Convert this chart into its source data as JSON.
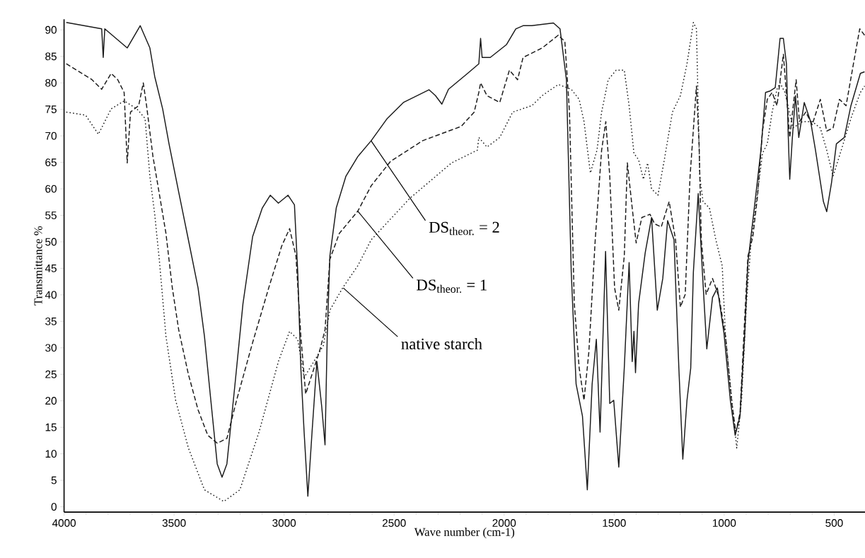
{
  "chart_data": {
    "type": "line",
    "xlabel": "Wave number (cm-1)",
    "ylabel": "Transmittance %",
    "xlim": [
      4000,
      360
    ],
    "ylim": [
      -1,
      92
    ],
    "xticks": [
      4000,
      3500,
      3000,
      2500,
      2000,
      1500,
      1000,
      500
    ],
    "yticks": [
      0,
      5,
      10,
      15,
      20,
      25,
      30,
      35,
      40,
      45,
      50,
      55,
      60,
      65,
      70,
      75,
      80,
      85,
      90
    ],
    "grid": false,
    "marker": "none",
    "series": [
      {
        "color": "#1a1a1a",
        "line_style": "solid",
        "x": [
          3990,
          3829,
          3822,
          3815,
          3713,
          3654,
          3610,
          3588,
          3552,
          3523,
          3479,
          3435,
          3391,
          3362,
          3333,
          3304,
          3282,
          3260,
          3223,
          3187,
          3143,
          3099,
          3063,
          3026,
          2982,
          2953,
          2938,
          2924,
          2909,
          2892,
          2873,
          2851,
          2829,
          2814,
          2804,
          2792,
          2763,
          2719,
          2665,
          2604,
          2531,
          2458,
          2341,
          2312,
          2283,
          2253,
          2166,
          2115,
          2107,
          2100,
          2063,
          1990,
          1947,
          1914,
          1874,
          1776,
          1746,
          1717,
          1695,
          1673,
          1644,
          1622,
          1600,
          1581,
          1564,
          1539,
          1520,
          1502,
          1479,
          1454,
          1432,
          1418,
          1410,
          1403,
          1389,
          1359,
          1330,
          1304,
          1279,
          1257,
          1228,
          1206,
          1188,
          1169,
          1152,
          1140,
          1118,
          1099,
          1079,
          1053,
          1031,
          1001,
          972,
          950,
          928,
          907,
          892,
          863,
          833,
          812,
          790,
          768,
          746,
          731,
          717,
          709,
          702,
          690,
          676,
          661,
          636,
          607,
          585,
          549,
          534,
          512,
          490,
          454,
          424,
          381,
          362
        ],
        "values": [
          91.4,
          90.2,
          84.8,
          90.2,
          86.6,
          90.8,
          86.6,
          81.2,
          75.1,
          68.5,
          59.4,
          50.4,
          41.3,
          32.2,
          20.1,
          8.1,
          5.6,
          8.1,
          23.2,
          38.3,
          51.0,
          56.4,
          58.8,
          57.3,
          58.8,
          57.0,
          44.3,
          26.2,
          14.1,
          2.0,
          14.1,
          27.4,
          18.9,
          11.7,
          32.2,
          47.3,
          56.4,
          62.4,
          66.1,
          69.1,
          73.3,
          76.3,
          78.7,
          77.6,
          76.0,
          78.8,
          81.8,
          83.6,
          88.4,
          84.8,
          84.8,
          87.2,
          90.2,
          90.8,
          90.8,
          91.3,
          90.2,
          80.6,
          44.3,
          23.2,
          17.1,
          3.2,
          23.2,
          31.6,
          14.1,
          48.2,
          19.5,
          20.1,
          7.5,
          26.2,
          46.1,
          27.4,
          33.1,
          25.3,
          38.3,
          47.9,
          54.6,
          37.1,
          43.1,
          54.0,
          50.4,
          26.2,
          9.0,
          20.1,
          26.2,
          44.3,
          59.1,
          44.3,
          29.8,
          39.5,
          41.3,
          32.8,
          20.1,
          13.5,
          17.1,
          32.2,
          46.1,
          56.4,
          67.3,
          78.2,
          78.5,
          79.1,
          88.4,
          88.4,
          83.6,
          70.3,
          61.8,
          69.7,
          77.6,
          69.7,
          76.3,
          72.7,
          67.3,
          57.6,
          55.7,
          61.2,
          68.5,
          69.7,
          75.7,
          81.8,
          82.1
        ]
      },
      {
        "color": "#1a1a1a",
        "line_style": "dashed",
        "x": [
          3990,
          3873,
          3829,
          3786,
          3756,
          3727,
          3713,
          3698,
          3661,
          3640,
          3625,
          3596,
          3566,
          3537,
          3508,
          3479,
          3435,
          3391,
          3347,
          3304,
          3260,
          3216,
          3143,
          3070,
          3011,
          2975,
          2946,
          2924,
          2902,
          2873,
          2836,
          2814,
          2792,
          2749,
          2665,
          2604,
          2516,
          2370,
          2195,
          2136,
          2115,
          2107,
          2078,
          2020,
          1976,
          1939,
          1914,
          1827,
          1754,
          1724,
          1703,
          1681,
          1659,
          1637,
          1615,
          1586,
          1557,
          1538,
          1520,
          1498,
          1479,
          1454,
          1440,
          1418,
          1400,
          1374,
          1337,
          1316,
          1286,
          1250,
          1221,
          1199,
          1177,
          1155,
          1126,
          1114,
          1104,
          1082,
          1053,
          1023,
          994,
          965,
          947,
          928,
          907,
          892,
          870,
          848,
          826,
          804,
          782,
          760,
          731,
          702,
          673,
          658,
          629,
          600,
          563,
          534,
          505,
          476,
          446,
          410,
          384,
          362
        ],
        "values": [
          83.6,
          80.6,
          78.8,
          81.8,
          80.6,
          78.2,
          64.9,
          74.5,
          75.7,
          80.0,
          75.7,
          66.1,
          58.8,
          51.6,
          41.3,
          33.4,
          25.0,
          18.3,
          13.5,
          12.0,
          12.9,
          20.1,
          31.0,
          41.3,
          49.2,
          52.5,
          47.3,
          32.2,
          21.3,
          25.0,
          29.8,
          33.4,
          46.7,
          51.6,
          55.8,
          60.6,
          65.2,
          69.1,
          71.8,
          74.5,
          78.2,
          80.0,
          77.6,
          76.3,
          82.4,
          80.6,
          84.8,
          86.6,
          89.0,
          87.8,
          74.5,
          38.3,
          26.2,
          20.1,
          29.2,
          50.4,
          67.3,
          72.7,
          62.4,
          41.3,
          37.1,
          47.3,
          64.9,
          56.4,
          49.8,
          54.6,
          55.2,
          53.4,
          52.8,
          57.6,
          50.4,
          37.7,
          40.1,
          62.4,
          79.4,
          68.5,
          50.4,
          40.1,
          43.1,
          39.5,
          32.2,
          19.5,
          14.1,
          17.7,
          35.3,
          47.3,
          50.9,
          58.8,
          70.9,
          76.9,
          78.2,
          75.7,
          85.4,
          69.7,
          80.6,
          72.7,
          74.5,
          72.1,
          76.9,
          70.9,
          71.5,
          76.9,
          75.7,
          84.2,
          90.2,
          89.0
        ]
      },
      {
        "color": "#1a1a1a",
        "line_style": "dotted",
        "x": [
          3990,
          3902,
          3844,
          3786,
          3727,
          3669,
          3632,
          3610,
          3588,
          3566,
          3537,
          3493,
          3435,
          3362,
          3274,
          3201,
          3114,
          3026,
          2975,
          2938,
          2909,
          2865,
          2822,
          2792,
          2734,
          2665,
          2604,
          2429,
          2239,
          2122,
          2115,
          2078,
          2020,
          1961,
          1874,
          1827,
          1754,
          1695,
          1659,
          1637,
          1608,
          1578,
          1557,
          1527,
          1491,
          1454,
          1432,
          1410,
          1389,
          1367,
          1348,
          1330,
          1301,
          1272,
          1235,
          1199,
          1169,
          1140,
          1126,
          1111,
          1096,
          1067,
          1038,
          1009,
          994,
          965,
          943,
          921,
          899,
          877,
          848,
          826,
          804,
          782,
          760,
          746,
          724,
          687,
          644,
          600,
          563,
          534,
          505,
          468,
          424,
          381,
          362
        ],
        "values": [
          74.5,
          73.9,
          70.3,
          75.1,
          76.6,
          75.1,
          73.3,
          62.4,
          55.2,
          46.1,
          32.2,
          20.1,
          11.1,
          3.2,
          1.0,
          3.2,
          14.1,
          27.4,
          33.1,
          31.6,
          24.4,
          27.4,
          30.4,
          37.1,
          41.3,
          45.5,
          50.4,
          58.2,
          64.9,
          67.3,
          69.7,
          67.9,
          69.7,
          74.5,
          75.7,
          77.6,
          79.7,
          78.8,
          76.9,
          72.7,
          63.0,
          67.3,
          74.5,
          80.6,
          82.4,
          82.4,
          75.7,
          66.7,
          65.5,
          61.8,
          64.9,
          60.0,
          58.8,
          65.5,
          74.5,
          77.6,
          83.6,
          91.4,
          90.2,
          62.4,
          57.6,
          56.4,
          50.4,
          45.5,
          32.2,
          20.1,
          11.1,
          20.1,
          38.3,
          50.4,
          59.4,
          66.7,
          68.5,
          74.5,
          78.8,
          80.0,
          78.2,
          71.5,
          72.7,
          72.7,
          71.5,
          67.3,
          62.4,
          67.3,
          73.3,
          78.2,
          79.4
        ]
      }
    ],
    "annotations": [
      {
        "text": "DS$_{theor.}$ = 2",
        "x": 2605,
        "y": 69.1
      },
      {
        "text": "DS$_{theor.}$ = 1",
        "x": 2665,
        "y": 55.8
      },
      {
        "text": "native starch",
        "x": 2731,
        "y": 41.3
      }
    ]
  }
}
